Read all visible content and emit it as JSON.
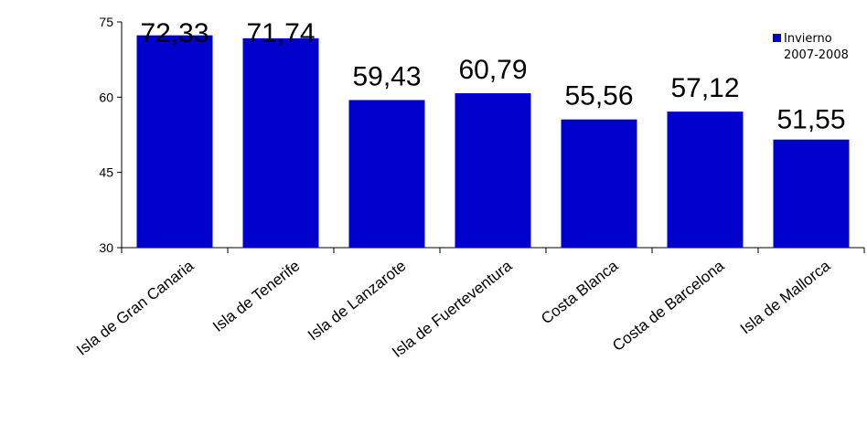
{
  "chart_data": {
    "type": "bar",
    "categories": [
      "Isla de Gran Canaria",
      "Isla de Tenerife",
      "Isla de Lanzarote",
      "Isla de Fuerteventura",
      "Costa Blanca",
      "Costa de Barcelona",
      "Isla de Mallorca"
    ],
    "series": [
      {
        "name": "Invierno 2007-2008",
        "values": [
          72.33,
          71.74,
          59.43,
          60.79,
          55.56,
          57.12,
          51.55
        ],
        "data_labels": [
          "72,33",
          "71,74",
          "59,43",
          "60,79",
          "55,56",
          "57,12",
          "51,55"
        ],
        "color": "#0000CC"
      }
    ],
    "legend_lines": [
      "Invierno",
      "2007-2008"
    ],
    "legend_position": "top-right",
    "ylim": [
      30,
      75
    ],
    "yticks": [
      "75",
      "60",
      "45",
      "30"
    ],
    "ytick_values": [
      75,
      60,
      45,
      30
    ],
    "grid": false,
    "title": "",
    "xlabel": "",
    "ylabel": ""
  }
}
